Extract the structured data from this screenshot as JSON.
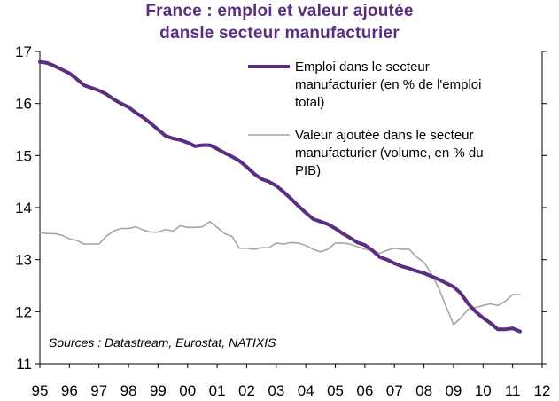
{
  "chart_data": {
    "type": "line",
    "title_line1": "France : emploi et valeur ajoutée",
    "title_line2": "dansle secteur manufacturier",
    "ylim": [
      11,
      17
    ],
    "yticks": [
      "11",
      "12",
      "13",
      "14",
      "15",
      "16",
      "17"
    ],
    "xticks": [
      "95",
      "96",
      "97",
      "98",
      "99",
      "00",
      "01",
      "02",
      "03",
      "04",
      "05",
      "06",
      "07",
      "08",
      "09",
      "10",
      "11",
      "12"
    ],
    "xrange": [
      1995,
      2012
    ],
    "source": "Sources : Datastream, Eurostat, NATIXIS",
    "legend_placement": "top-right",
    "series": [
      {
        "name": "Emploi dans le secteur manufacturier (en % de l'emploi total)",
        "legend_lines": [
          "Emploi dans le secteur",
          "manufacturier (en % de l'emploi",
          "total)"
        ],
        "color": "#5a2d82",
        "width": 4,
        "x": [
          1995.0,
          1995.25,
          1995.5,
          1995.75,
          1996.0,
          1996.25,
          1996.5,
          1996.75,
          1997.0,
          1997.25,
          1997.5,
          1997.75,
          1998.0,
          1998.25,
          1998.5,
          1998.75,
          1999.0,
          1999.25,
          1999.5,
          1999.75,
          2000.0,
          2000.25,
          2000.5,
          2000.75,
          2001.0,
          2001.25,
          2001.5,
          2001.75,
          2002.0,
          2002.25,
          2002.5,
          2002.75,
          2003.0,
          2003.25,
          2003.5,
          2003.75,
          2004.0,
          2004.25,
          2004.5,
          2004.75,
          2005.0,
          2005.25,
          2005.5,
          2005.75,
          2006.0,
          2006.25,
          2006.5,
          2006.75,
          2007.0,
          2007.25,
          2007.5,
          2007.75,
          2008.0,
          2008.25,
          2008.5,
          2008.75,
          2009.0,
          2009.25,
          2009.5,
          2009.75,
          2010.0,
          2010.25,
          2010.5,
          2010.75,
          2011.0,
          2011.25
        ],
        "y": [
          16.8,
          16.78,
          16.72,
          16.65,
          16.58,
          16.47,
          16.35,
          16.3,
          16.25,
          16.18,
          16.08,
          16.0,
          15.93,
          15.82,
          15.73,
          15.62,
          15.5,
          15.38,
          15.33,
          15.3,
          15.25,
          15.18,
          15.2,
          15.2,
          15.13,
          15.05,
          14.98,
          14.9,
          14.78,
          14.65,
          14.55,
          14.5,
          14.42,
          14.3,
          14.17,
          14.03,
          13.9,
          13.78,
          13.73,
          13.68,
          13.6,
          13.5,
          13.42,
          13.33,
          13.28,
          13.18,
          13.05,
          13.0,
          12.93,
          12.87,
          12.83,
          12.78,
          12.74,
          12.68,
          12.62,
          12.55,
          12.48,
          12.35,
          12.15,
          12.0,
          11.88,
          11.78,
          11.66,
          11.66,
          11.68,
          11.62
        ]
      },
      {
        "name": "Valeur ajoutée dans le secteur manufacturier (volume, en % du PIB)",
        "legend_lines": [
          "Valeur ajoutée dans le secteur",
          "manufacturier (volume, en % du",
          "PIB)"
        ],
        "color": "#a6a6a6",
        "width": 1.6,
        "x": [
          1995.0,
          1995.25,
          1995.5,
          1995.75,
          1996.0,
          1996.25,
          1996.5,
          1996.75,
          1997.0,
          1997.25,
          1997.5,
          1997.75,
          1998.0,
          1998.25,
          1998.5,
          1998.75,
          1999.0,
          1999.25,
          1999.5,
          1999.75,
          2000.0,
          2000.25,
          2000.5,
          2000.75,
          2001.0,
          2001.25,
          2001.5,
          2001.75,
          2002.0,
          2002.25,
          2002.5,
          2002.75,
          2003.0,
          2003.25,
          2003.5,
          2003.75,
          2004.0,
          2004.25,
          2004.5,
          2004.75,
          2005.0,
          2005.25,
          2005.5,
          2005.75,
          2006.0,
          2006.25,
          2006.5,
          2006.75,
          2007.0,
          2007.25,
          2007.5,
          2007.75,
          2008.0,
          2008.25,
          2008.5,
          2008.75,
          2009.0,
          2009.25,
          2009.5,
          2009.75,
          2010.0,
          2010.25,
          2010.5,
          2010.75,
          2011.0,
          2011.25
        ],
        "y": [
          13.52,
          13.5,
          13.5,
          13.47,
          13.4,
          13.37,
          13.3,
          13.3,
          13.3,
          13.45,
          13.55,
          13.6,
          13.6,
          13.63,
          13.57,
          13.53,
          13.53,
          13.58,
          13.55,
          13.65,
          13.62,
          13.62,
          13.63,
          13.73,
          13.62,
          13.5,
          13.45,
          13.22,
          13.22,
          13.2,
          13.23,
          13.23,
          13.32,
          13.3,
          13.33,
          13.32,
          13.27,
          13.2,
          13.15,
          13.2,
          13.32,
          13.32,
          13.3,
          13.25,
          13.2,
          13.18,
          13.12,
          13.18,
          13.22,
          13.2,
          13.2,
          13.05,
          12.95,
          12.73,
          12.45,
          12.1,
          11.75,
          11.88,
          12.05,
          12.08,
          12.12,
          12.15,
          12.12,
          12.2,
          12.33,
          12.33
        ]
      }
    ]
  }
}
